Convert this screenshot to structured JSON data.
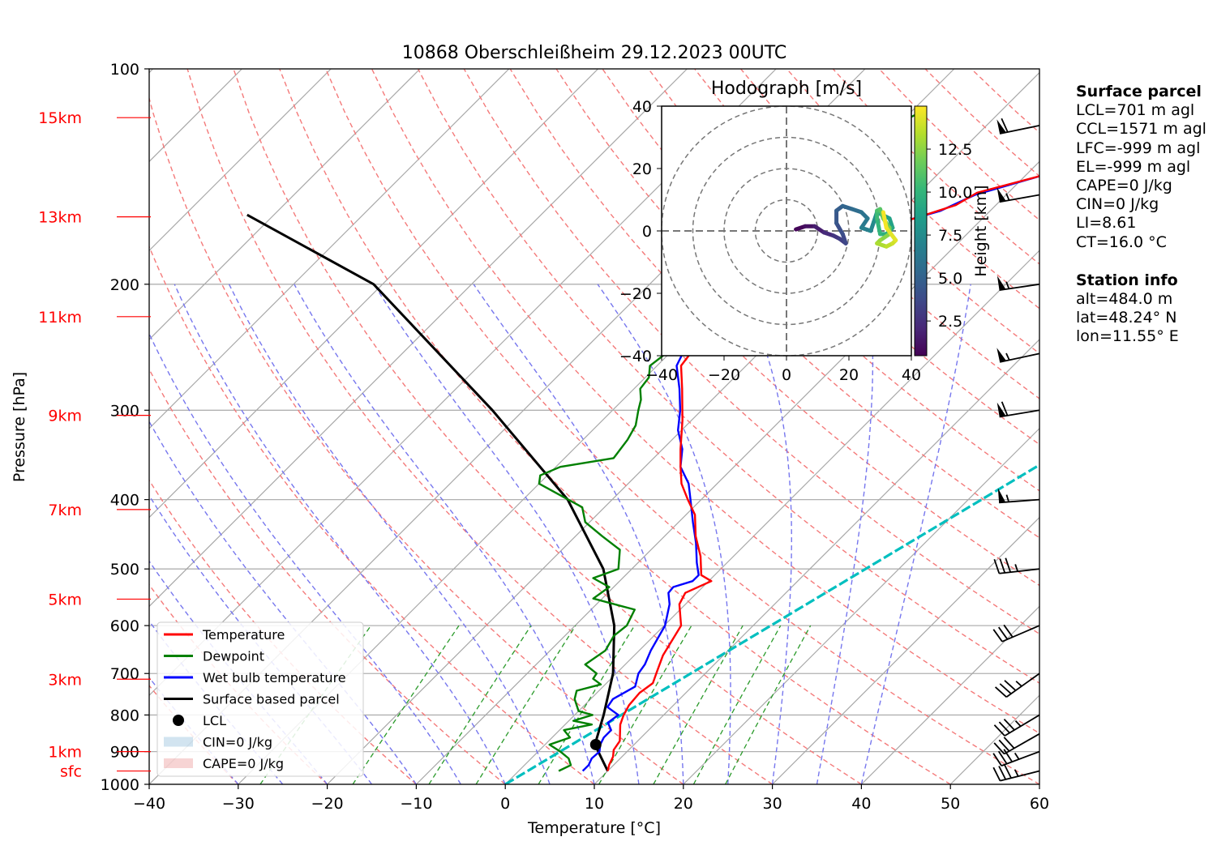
{
  "chart_data": {
    "type": "skew-t",
    "title": "10868 Oberschleißheim 29.12.2023 00UTC",
    "xlabel": "Temperature [°C]",
    "ylabel": "Pressure [hPa]",
    "xlim": [
      -40,
      60
    ],
    "ylim": [
      1000,
      100
    ],
    "x_ticks": [
      -40,
      -30,
      -20,
      -10,
      0,
      10,
      20,
      30,
      40,
      50,
      60
    ],
    "y_ticks": [
      100,
      200,
      300,
      400,
      500,
      600,
      700,
      800,
      900,
      1000
    ],
    "grid": true,
    "height_labels": [
      {
        "label": "sfc",
        "p": 958
      },
      {
        "label": "1km",
        "p": 900
      },
      {
        "label": "3km",
        "p": 713
      },
      {
        "label": "5km",
        "p": 551
      },
      {
        "label": "7km",
        "p": 413
      },
      {
        "label": "9km",
        "p": 305
      },
      {
        "label": "11km",
        "p": 222
      },
      {
        "label": "13km",
        "p": 161
      },
      {
        "label": "15km",
        "p": 117
      }
    ],
    "series": [
      {
        "name": "Temperature",
        "color": "#ff0000",
        "points": [
          [
            10,
            958
          ],
          [
            9.5,
            940
          ],
          [
            9,
            915
          ],
          [
            8.3,
            895
          ],
          [
            8,
            870
          ],
          [
            6.2,
            825
          ],
          [
            5.5,
            800
          ],
          [
            5,
            775
          ],
          [
            4.8,
            745
          ],
          [
            5.2,
            722
          ],
          [
            4.5,
            700
          ],
          [
            3.2,
            660
          ],
          [
            1.9,
            600
          ],
          [
            -0.7,
            560
          ],
          [
            -1.3,
            540
          ],
          [
            0.3,
            520
          ],
          [
            -1.5,
            510
          ],
          [
            -3.7,
            480
          ],
          [
            -6.5,
            450
          ],
          [
            -9,
            420
          ],
          [
            -11.5,
            400
          ],
          [
            -14,
            380
          ],
          [
            -16,
            360
          ],
          [
            -18,
            340
          ],
          [
            -21,
            310
          ],
          [
            -24.6,
            280
          ],
          [
            -27.3,
            260
          ],
          [
            -27.8,
            245
          ],
          [
            -27.1,
            230
          ],
          [
            -27.3,
            220
          ],
          [
            -27.6,
            210
          ],
          [
            -25.8,
            200
          ],
          [
            -24.8,
            190
          ],
          [
            -22.4,
            180
          ],
          [
            -21,
            172
          ],
          [
            -19.1,
            165
          ],
          [
            -14.5,
            155
          ],
          [
            -13.5,
            149
          ],
          [
            -8.2,
            141
          ],
          [
            -7.6,
            135
          ],
          [
            -8.1,
            130
          ],
          [
            -7.9,
            126
          ],
          [
            -5,
            123
          ],
          [
            -4.2,
            120
          ],
          [
            -4.3,
            117
          ],
          [
            -2.8,
            114
          ]
        ]
      },
      {
        "name": "Dewpoint",
        "color": "#008000",
        "points": [
          [
            4.5,
            958
          ],
          [
            5.2,
            940
          ],
          [
            4.2,
            920
          ],
          [
            2.5,
            900
          ],
          [
            0.5,
            880
          ],
          [
            2,
            860
          ],
          [
            0.5,
            840
          ],
          [
            3,
            825
          ],
          [
            0.5,
            815
          ],
          [
            2,
            800
          ],
          [
            0,
            790
          ],
          [
            -1.8,
            760
          ],
          [
            -2.5,
            740
          ],
          [
            -0.5,
            725
          ],
          [
            -2,
            712
          ],
          [
            -2.2,
            700
          ],
          [
            -4.5,
            680
          ],
          [
            -3.8,
            650
          ],
          [
            -4.5,
            620
          ],
          [
            -4.2,
            600
          ],
          [
            -5.1,
            570
          ],
          [
            -11,
            550
          ],
          [
            -10.5,
            530
          ],
          [
            -13.3,
            515
          ],
          [
            -11.5,
            500
          ],
          [
            -13.5,
            470
          ],
          [
            -17,
            450
          ],
          [
            -20.5,
            430
          ],
          [
            -22.5,
            410
          ],
          [
            -30,
            380
          ],
          [
            -30.8,
            370
          ],
          [
            -29.5,
            360
          ],
          [
            -24.5,
            350
          ],
          [
            -25,
            330
          ],
          [
            -25.7,
            315
          ],
          [
            -27.1,
            300
          ],
          [
            -28,
            290
          ],
          [
            -29.3,
            280
          ],
          [
            -29.6,
            270
          ],
          [
            -30.8,
            260
          ],
          [
            -30.4,
            250
          ],
          [
            -31.6,
            240
          ],
          [
            -33.6,
            228
          ],
          [
            -33,
            220
          ],
          [
            -30.3,
            215
          ],
          [
            -31.4,
            208
          ],
          [
            -30.7,
            200
          ],
          [
            -32,
            190
          ],
          [
            -32.5,
            180
          ],
          [
            -30.5,
            172
          ],
          [
            -31.5,
            165
          ],
          [
            -31,
            160
          ],
          [
            -33.6,
            155
          ],
          [
            -33.6,
            150
          ],
          [
            -32.4,
            145
          ],
          [
            -32.4,
            140
          ],
          [
            -32.4,
            135
          ],
          [
            -31.6,
            130
          ],
          [
            -30.5,
            125
          ],
          [
            -30.4,
            120
          ],
          [
            -28.9,
            115
          ]
        ]
      },
      {
        "name": "Wet bulb temperature",
        "color": "#0000ff",
        "points": [
          [
            7.2,
            958
          ],
          [
            7.2,
            940
          ],
          [
            6.8,
            920
          ],
          [
            6.9,
            900
          ],
          [
            6.2,
            880
          ],
          [
            5.8,
            860
          ],
          [
            5.8,
            840
          ],
          [
            4.6,
            820
          ],
          [
            4.9,
            800
          ],
          [
            2.8,
            780
          ],
          [
            2.5,
            760
          ],
          [
            3.6,
            730
          ],
          [
            2.5,
            700
          ],
          [
            2.2,
            680
          ],
          [
            1.3,
            650
          ],
          [
            0.1,
            600
          ],
          [
            -1.8,
            560
          ],
          [
            -3.2,
            540
          ],
          [
            -3.3,
            530
          ],
          [
            -1.8,
            520
          ],
          [
            -1.8,
            510
          ],
          [
            -3.4,
            490
          ],
          [
            -5.7,
            460
          ],
          [
            -8.4,
            430
          ],
          [
            -11.2,
            400
          ],
          [
            -13.2,
            380
          ],
          [
            -16,
            360
          ],
          [
            -17.8,
            340
          ],
          [
            -20.4,
            320
          ],
          [
            -22.4,
            300
          ],
          [
            -24.9,
            280
          ],
          [
            -27.8,
            260
          ],
          [
            -28.5,
            250
          ],
          [
            -28.3,
            240
          ],
          [
            -28,
            230
          ],
          [
            -27.7,
            220
          ],
          [
            -27.7,
            210
          ],
          [
            -26.1,
            200
          ],
          [
            -25,
            192
          ],
          [
            -24.1,
            185
          ],
          [
            -21.5,
            178
          ],
          [
            -21.2,
            172
          ],
          [
            -19.4,
            165
          ],
          [
            -15.6,
            158
          ],
          [
            -13.5,
            150
          ],
          [
            -8.2,
            141
          ],
          [
            -7.6,
            135
          ],
          [
            -7.8,
            129
          ],
          [
            -5,
            123
          ],
          [
            -4.2,
            120
          ],
          [
            -3.3,
            117
          ],
          [
            -2.9,
            114
          ]
        ]
      },
      {
        "name": "Surface based parcel",
        "color": "#000000",
        "points": [
          [
            10,
            958
          ],
          [
            5.6,
            880
          ],
          [
            3.25,
            800
          ],
          [
            -0.35,
            700
          ],
          [
            -5.6,
            600
          ],
          [
            -13.2,
            500
          ],
          [
            -25,
            400
          ],
          [
            -43.5,
            300
          ],
          [
            -71,
            200
          ],
          [
            -93,
            160
          ]
        ]
      }
    ],
    "lcl": {
      "t": 5.7,
      "p": 880
    },
    "mixing_ratio_line": {
      "color": "#00bfbf",
      "points": [
        [
          0,
          1000
        ],
        [
          54,
          100
        ]
      ]
    },
    "legend": {
      "placement": "lower-left",
      "entries": [
        "Temperature",
        "Dewpoint",
        "Wet bulb temperature",
        "Surface based parcel",
        "LCL",
        "CIN=0 J/kg",
        "CAPE=0 J/kg"
      ]
    },
    "winds": [
      {
        "p": 958,
        "u": 16,
        "v": 4
      },
      {
        "p": 900,
        "u": 16,
        "v": 6
      },
      {
        "p": 850,
        "u": 14,
        "v": 8
      },
      {
        "p": 800,
        "u": 15,
        "v": 9
      },
      {
        "p": 700,
        "u": 14,
        "v": 10
      },
      {
        "p": 600,
        "u": 14,
        "v": 6
      },
      {
        "p": 500,
        "u": 18,
        "v": 2
      },
      {
        "p": 400,
        "u": 27,
        "v": 2
      },
      {
        "p": 300,
        "u": 30,
        "v": 5
      },
      {
        "p": 250,
        "u": 28,
        "v": 6
      },
      {
        "p": 200,
        "u": 27,
        "v": 4
      },
      {
        "p": 150,
        "u": 28,
        "v": 5
      },
      {
        "p": 120,
        "u": 29,
        "v": 6
      }
    ],
    "hodograph": {
      "title": "Hodograph [m/s]",
      "xlim": [
        -40,
        40
      ],
      "ylim": [
        -40,
        40
      ],
      "x_ticks": [
        -40,
        -20,
        0,
        20,
        40
      ],
      "y_ticks": [
        -40,
        -20,
        0,
        20,
        40
      ],
      "rings": [
        10,
        20,
        30,
        40
      ],
      "colorbar": {
        "label": "Height [km]",
        "ticks": [
          2.5,
          5.0,
          7.5,
          10.0,
          12.5
        ],
        "range": [
          0.48,
          15
        ]
      },
      "trace": [
        [
          3,
          0.5,
          0.5
        ],
        [
          6,
          1.5,
          0.9
        ],
        [
          9,
          1.5,
          1.4
        ],
        [
          12,
          -0.5,
          2
        ],
        [
          15,
          -1.5,
          2.5
        ],
        [
          17,
          -2.5,
          3
        ],
        [
          19,
          -4,
          3.4
        ],
        [
          18,
          -1,
          3.8
        ],
        [
          16,
          2.5,
          4.2
        ],
        [
          16,
          6.5,
          4.6
        ],
        [
          18,
          8,
          5
        ],
        [
          21,
          7,
          5.4
        ],
        [
          24,
          6,
          5.8
        ],
        [
          26,
          4,
          6.2
        ],
        [
          24,
          1,
          6.6
        ],
        [
          27,
          0,
          7
        ],
        [
          28,
          3,
          7.4
        ],
        [
          29,
          6,
          7.8
        ],
        [
          31,
          5,
          8.2
        ],
        [
          33,
          4,
          8.6
        ],
        [
          34,
          1,
          9
        ],
        [
          32,
          -1,
          9.4
        ],
        [
          30,
          -1,
          9.8
        ],
        [
          29,
          4,
          10.2
        ],
        [
          29,
          6.5,
          10.6
        ],
        [
          30,
          7,
          11
        ],
        [
          31,
          4,
          11.4
        ],
        [
          33,
          1,
          11.8
        ],
        [
          33,
          -1,
          12.2
        ],
        [
          30,
          -3,
          12.6
        ],
        [
          29,
          -4,
          13
        ],
        [
          32,
          -5,
          13.4
        ],
        [
          34,
          -4,
          13.8
        ],
        [
          35,
          -3,
          14.2
        ],
        [
          32,
          1,
          14.6
        ],
        [
          31,
          6,
          15
        ]
      ]
    }
  },
  "info": {
    "surface_heading": "Surface parcel",
    "surface_lines": [
      "LCL=701 m agl",
      "CCL=1571 m agl",
      "LFC=-999 m agl",
      "EL=-999 m agl",
      "CAPE=0 J/kg",
      "CIN=0 J/kg",
      "LI=8.61",
      "CT=16.0 °C"
    ],
    "station_heading": "Station info",
    "station_lines": [
      "alt=484.0 m",
      "lat=48.24° N",
      "lon=11.55° E"
    ]
  }
}
